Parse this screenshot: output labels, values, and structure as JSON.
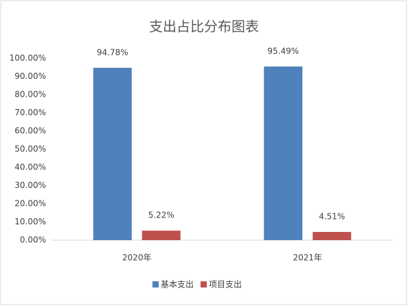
{
  "chart_data": {
    "type": "bar",
    "title": "支出占比分布图表",
    "categories": [
      "2020年",
      "2021年"
    ],
    "series": [
      {
        "name": "基本支出",
        "color": "#4f81bd",
        "values": [
          94.78,
          95.49
        ],
        "value_labels": [
          "94.78%",
          "95.49%"
        ]
      },
      {
        "name": "项目支出",
        "color": "#c0504d",
        "values": [
          5.22,
          4.51
        ],
        "value_labels": [
          "5.22%",
          "4.51%"
        ]
      }
    ],
    "ylim": [
      0,
      100
    ],
    "yticks": [
      {
        "value": 0,
        "label": "0.00%"
      },
      {
        "value": 10,
        "label": "10.00%"
      },
      {
        "value": 20,
        "label": "20.00%"
      },
      {
        "value": 30,
        "label": "30.00%"
      },
      {
        "value": 40,
        "label": "40.00%"
      },
      {
        "value": 50,
        "label": "50.00%"
      },
      {
        "value": 60,
        "label": "60.00%"
      },
      {
        "value": 70,
        "label": "70.00%"
      },
      {
        "value": 80,
        "label": "80.00%"
      },
      {
        "value": 90,
        "label": "90.00%"
      },
      {
        "value": 100,
        "label": "100.00%"
      }
    ],
    "grid": false,
    "legend": "bottom"
  }
}
